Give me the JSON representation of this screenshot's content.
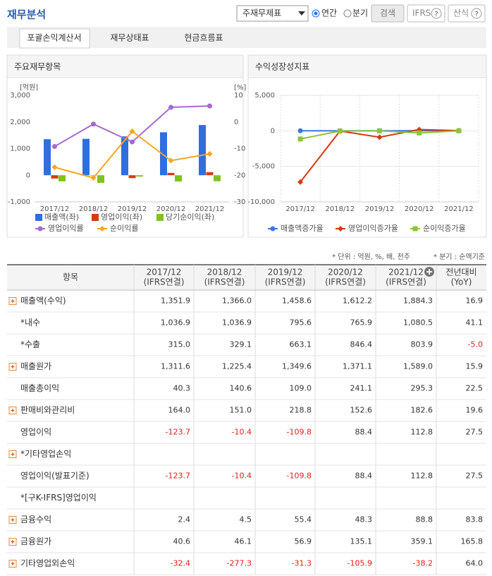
{
  "header": {
    "title": "재무분석",
    "select": "주재무제표",
    "radios": [
      "연간",
      "분기"
    ],
    "buttons": [
      "검색",
      "IFRS",
      "산식"
    ]
  },
  "tabs": [
    "포괄손익계산서",
    "재무상태표",
    "현금흐름표"
  ],
  "panels": [
    "주요재무항목",
    "수익성장성지표"
  ],
  "chart_data": [
    {
      "type": "combo",
      "categories": [
        "2017/12",
        "2018/12",
        "2019/12",
        "2020/12",
        "2021/12"
      ],
      "ylabel": "[억원]",
      "y2label": "[%]",
      "ylim": [
        -1000,
        3000
      ],
      "yticks": [
        {
          "value": -1000,
          "label": "-1,000"
        },
        0,
        {
          "value": 1000,
          "label": "1,000"
        },
        {
          "value": 2000,
          "label": "2,000"
        },
        {
          "value": 3000,
          "label": "3,000"
        }
      ],
      "y2lim": [
        -30,
        10
      ],
      "y2ticks": [
        -30,
        -20,
        -10,
        0,
        10
      ],
      "grid": false,
      "series": [
        {
          "name": "매출액(좌)",
          "type": "bar",
          "color": "#2f6fdc",
          "values": [
            1351.9,
            1366.0,
            1458.6,
            1612.2,
            1884.3
          ]
        },
        {
          "name": "영업이익(좌)",
          "type": "bar",
          "color": "#d63b12",
          "values": [
            -123.7,
            -10.4,
            -109.8,
            88.4,
            112.8
          ]
        },
        {
          "name": "당기순이익(좌)",
          "type": "bar",
          "color": "#7fc31c",
          "values": [
            -230,
            -287,
            -51,
            -234,
            -226
          ]
        },
        {
          "name": "영업이익률",
          "type": "line",
          "axis": "y2",
          "marker": "circle",
          "color": "#a56ad0",
          "values": [
            -9.2,
            -0.8,
            -7.5,
            5.5,
            6.0
          ]
        },
        {
          "name": "순이익률",
          "type": "line",
          "axis": "y2",
          "marker": "diamond",
          "color": "#f5a623",
          "values": [
            -17,
            -21,
            -3.5,
            -14.5,
            -12
          ]
        }
      ]
    },
    {
      "type": "line",
      "categories": [
        "2017/12",
        "2018/12",
        "2019/12",
        "2020/12",
        "2021/12"
      ],
      "ylim": [
        -10000,
        5000
      ],
      "yticks": [
        {
          "value": -10000,
          "label": "-10,000"
        },
        {
          "value": -5000,
          "label": "-5,000"
        },
        0,
        {
          "value": 5000,
          "label": "5,000"
        }
      ],
      "grid": true,
      "series": [
        {
          "name": "매출액증가율",
          "marker": "circle",
          "color": "#3a78d8",
          "values": [
            10,
            1.0,
            6.8,
            10.5,
            16.9
          ]
        },
        {
          "name": "영업이익증가율",
          "marker": "diamond",
          "color": "#d43a12",
          "values": [
            -7200,
            -30,
            -900,
            180,
            28
          ]
        },
        {
          "name": "순이익증가율",
          "marker": "square",
          "color": "#8cc43c",
          "values": [
            -1150,
            -25,
            0,
            -300,
            0
          ]
        }
      ]
    }
  ],
  "notes": [
    "* 단위 : 억원, %, 배, 천주",
    "* 분기 : 순액기준"
  ],
  "table": {
    "header": [
      "항목",
      [
        "2017/12",
        "(IFRS연결)"
      ],
      [
        "2018/12",
        "(IFRS연결)"
      ],
      [
        "2019/12",
        "(IFRS연결)"
      ],
      [
        "2020/12",
        "(IFRS연결)"
      ],
      [
        "2021/12",
        "(IFRS연결)"
      ],
      [
        "전년대비",
        "(YoY)"
      ]
    ],
    "rows": [
      {
        "label": "매출액(수익)",
        "expandable": true,
        "cells": [
          "1,351.9",
          "1,366.0",
          "1,458.6",
          "1,612.2",
          "1,884.3",
          "16.9"
        ]
      },
      {
        "label": "*내수",
        "expandable": false,
        "cells": [
          "1,036.9",
          "1,036.9",
          "795.6",
          "765.9",
          "1,080.5",
          "41.1"
        ]
      },
      {
        "label": "*수출",
        "expandable": false,
        "cells": [
          "315.0",
          "329.1",
          "663.1",
          "846.4",
          "803.9",
          "-5.0"
        ]
      },
      {
        "label": "매출원가",
        "expandable": true,
        "cells": [
          "1,311.6",
          "1,225.4",
          "1,349.6",
          "1,371.1",
          "1,589.0",
          "15.9"
        ]
      },
      {
        "label": "매출총이익",
        "expandable": false,
        "cells": [
          "40.3",
          "140.6",
          "109.0",
          "241.1",
          "295.3",
          "22.5"
        ]
      },
      {
        "label": "판매비와관리비",
        "expandable": true,
        "cells": [
          "164.0",
          "151.0",
          "218.8",
          "152.6",
          "182.6",
          "19.6"
        ]
      },
      {
        "label": "영업이익",
        "expandable": false,
        "cells": [
          "-123.7",
          "-10.4",
          "-109.8",
          "88.4",
          "112.8",
          "27.5"
        ]
      },
      {
        "label": "*기타영업손익",
        "expandable": true,
        "cells": null
      },
      {
        "label": "영업이익(발표기준)",
        "expandable": false,
        "cells": [
          "-123.7",
          "-10.4",
          "-109.8",
          "88.4",
          "112.8",
          "27.5"
        ]
      },
      {
        "label": "*[구K-IFRS]영업이익",
        "expandable": false,
        "cells": null
      },
      {
        "label": "금융수익",
        "expandable": true,
        "cells": [
          "2.4",
          "4.5",
          "55.4",
          "48.3",
          "88.8",
          "83.8"
        ]
      },
      {
        "label": "금융원가",
        "expandable": true,
        "cells": [
          "40.6",
          "46.1",
          "56.9",
          "135.1",
          "359.1",
          "165.8"
        ]
      },
      {
        "label": "기타영업외손익",
        "expandable": true,
        "cells": [
          "-32.4",
          "-277.3",
          "-31.3",
          "-105.9",
          "-38.2",
          "64.0"
        ]
      }
    ]
  }
}
